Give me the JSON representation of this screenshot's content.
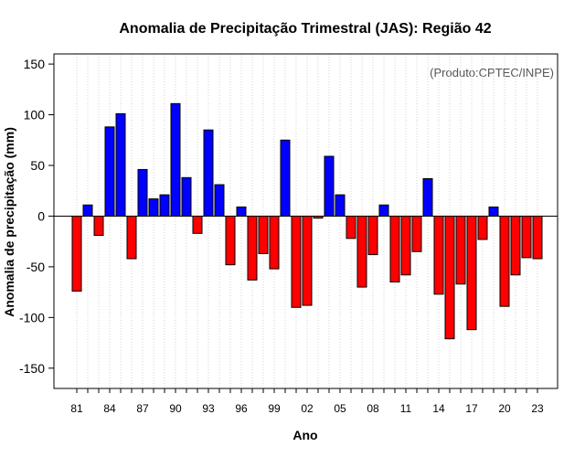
{
  "chart_data": {
    "type": "bar",
    "title": "Anomalia de Precipitação Trimestral (JAS): Região 42",
    "xlabel": "Ano",
    "ylabel": "Anomalia de precipitação (mm)",
    "annotation": "(Produto:CPTEC/INPE)",
    "ylim": [
      -170,
      160
    ],
    "yticks": [
      -150,
      -100,
      -50,
      0,
      50,
      100,
      150
    ],
    "xtick_labels": [
      "81",
      "84",
      "87",
      "90",
      "93",
      "96",
      "99",
      "02",
      "05",
      "08",
      "11",
      "14",
      "17",
      "20",
      "23"
    ],
    "grid": true,
    "colors": {
      "positive": "#0000ff",
      "negative": "#ff0000",
      "outline": "#000000",
      "grid": "#d3d3d3"
    },
    "categories": [
      "1981",
      "1982",
      "1983",
      "1984",
      "1985",
      "1986",
      "1987",
      "1988",
      "1989",
      "1990",
      "1991",
      "1992",
      "1993",
      "1994",
      "1995",
      "1996",
      "1997",
      "1998",
      "1999",
      "2000",
      "2001",
      "2002",
      "2003",
      "2004",
      "2005",
      "2006",
      "2007",
      "2008",
      "2009",
      "2010",
      "2011",
      "2012",
      "2013",
      "2014",
      "2015",
      "2016",
      "2017",
      "2018",
      "2019",
      "2020",
      "2021",
      "2022",
      "2023"
    ],
    "values": [
      -74,
      11,
      -19,
      88,
      101,
      -42,
      46,
      17,
      21,
      111,
      38,
      -17,
      85,
      31,
      -48,
      9,
      -63,
      -37,
      -52,
      75,
      -90,
      -88,
      -2,
      59,
      21,
      -22,
      -70,
      -38,
      11,
      -65,
      -58,
      -35,
      37,
      -77,
      -121,
      -67,
      -112,
      -23,
      9,
      -89,
      -58,
      -41,
      -42
    ]
  }
}
